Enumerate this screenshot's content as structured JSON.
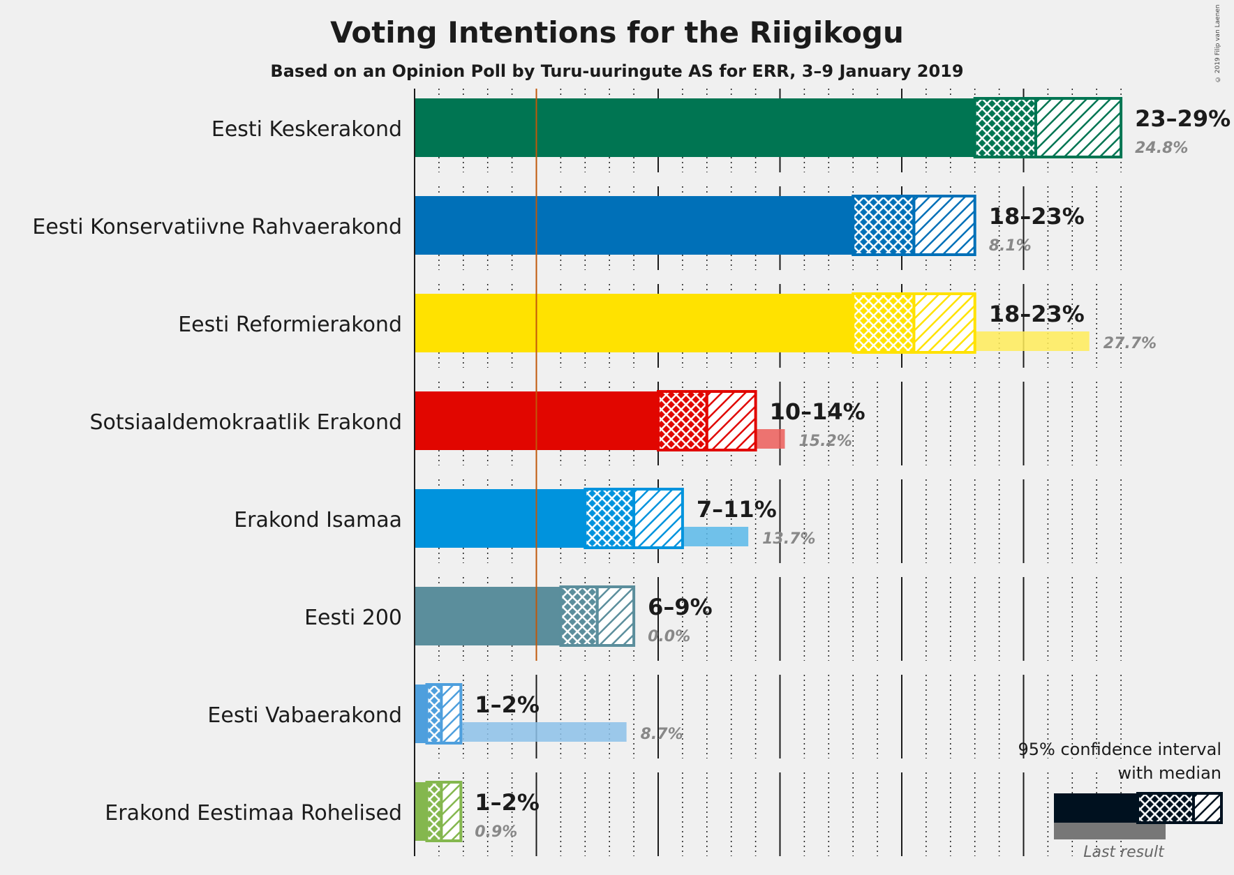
{
  "title": "Voting Intentions for the Riigikogu",
  "subtitle": "Based on an Opinion Poll by Turu-uuringute AS for ERR, 3–9 January 2019",
  "copyright": "© 2019 Filip van Laenen",
  "legend": {
    "line1": "95% confidence interval",
    "line2": "with median",
    "last_result": "Last result"
  },
  "chart_data": {
    "type": "bar",
    "orientation": "horizontal",
    "title": "Voting Intentions for the Riigikogu",
    "subtitle": "Based on an Opinion Poll by Turu-uuringute AS for ERR, 3–9 January 2019",
    "xlim": [
      0,
      30
    ],
    "threshold": 5,
    "parties": [
      {
        "name": "Eesti Keskerakond",
        "color": "#007552",
        "ci_low": 23,
        "median": 25.5,
        "ci_high": 29,
        "range_label": "23–29%",
        "last": 24.8,
        "last_label": "24.8%"
      },
      {
        "name": "Eesti Konservatiivne Rahvaerakond",
        "color": "#0070b8",
        "ci_low": 18,
        "median": 20.5,
        "ci_high": 23,
        "range_label": "18–23%",
        "last": 8.1,
        "last_label": "8.1%"
      },
      {
        "name": "Eesti Reformierakond",
        "color": "#ffe200",
        "ci_low": 18,
        "median": 20.5,
        "ci_high": 23,
        "range_label": "18–23%",
        "last": 27.7,
        "last_label": "27.7%"
      },
      {
        "name": "Sotsiaaldemokraatlik Erakond",
        "color": "#e10600",
        "ci_low": 10,
        "median": 12,
        "ci_high": 14,
        "range_label": "10–14%",
        "last": 15.2,
        "last_label": "15.2%"
      },
      {
        "name": "Erakond Isamaa",
        "color": "#0093dd",
        "ci_low": 7,
        "median": 9,
        "ci_high": 11,
        "range_label": "7–11%",
        "last": 13.7,
        "last_label": "13.7%"
      },
      {
        "name": "Eesti 200",
        "color": "#5b8e9c",
        "ci_low": 6,
        "median": 7.5,
        "ci_high": 9,
        "range_label": "6–9%",
        "last": 0.0,
        "last_label": "0.0%"
      },
      {
        "name": "Eesti Vabaerakond",
        "color": "#4e9fdd",
        "ci_low": 0.5,
        "median": 1.1,
        "ci_high": 1.9,
        "range_label": "1–2%",
        "last": 8.7,
        "last_label": "8.7%"
      },
      {
        "name": "Erakond Eestimaa Rohelised",
        "color": "#84b74e",
        "ci_low": 0.5,
        "median": 1.1,
        "ci_high": 1.9,
        "range_label": "1–2%",
        "last": 0.9,
        "last_label": "0.9%"
      }
    ]
  }
}
